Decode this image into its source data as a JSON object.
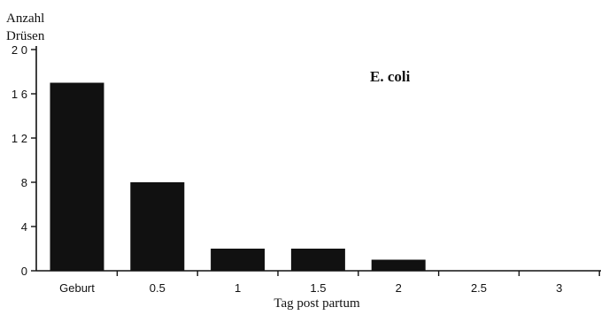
{
  "chart_data": {
    "type": "bar",
    "title": "",
    "annotation": "E. coli",
    "ylabel_line1": "Anzahl",
    "ylabel_line2": "Drüsen",
    "xlabel": "Tag post partum",
    "categories": [
      "Geburt",
      "0.5",
      "1",
      "1.5",
      "2",
      "2.5",
      "3"
    ],
    "values": [
      17,
      8,
      2,
      2,
      1,
      0,
      0
    ],
    "ylim": [
      0,
      20
    ],
    "yticks": [
      0,
      4,
      8,
      12,
      16,
      20
    ],
    "ytick_labels": [
      "0",
      "4",
      "8",
      "1 2",
      "1 6",
      "2 0"
    ],
    "grid": false,
    "legend": "none",
    "bar_color": "#111111"
  }
}
